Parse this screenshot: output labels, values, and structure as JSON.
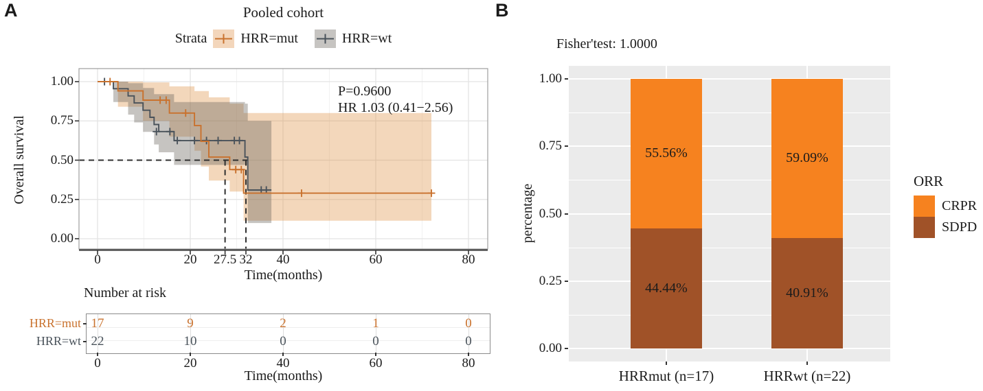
{
  "panels": {
    "a": "A",
    "b": "B"
  },
  "chart_data": [
    {
      "type": "line",
      "variant": "kaplan-meier",
      "title": "Pooled cohort",
      "legend_title": "Strata",
      "xlabel": "Time(months)",
      "ylabel": "Overall survival",
      "xlim": [
        0,
        80
      ],
      "ylim": [
        0,
        1
      ],
      "grid": true,
      "xticks": [
        0,
        20,
        27.5,
        32,
        40,
        60,
        80
      ],
      "xtick_labels": [
        "0",
        "20",
        "27.5",
        "32",
        "40",
        "60",
        "80"
      ],
      "yticks": [
        1,
        0.75,
        0.5,
        0.25,
        0
      ],
      "ytick_labels": [
        "1.00",
        "0.75",
        "0.50",
        "0.25",
        "0.00"
      ],
      "pvalue_text": "P=0.9600",
      "hr_text": "HR 1.03 (0.41−2.56)",
      "median_line": {
        "survival": 0.5,
        "times": [
          27.5,
          32
        ]
      },
      "series": [
        {
          "name": "HRR=mut",
          "color": "#C9722E",
          "band_color": "rgba(222,139,61,0.35)",
          "steps": [
            [
              0,
              1
            ],
            [
              4.4,
              0.941
            ],
            [
              9.8,
              0.882
            ],
            [
              15.5,
              0.8
            ],
            [
              20.9,
              0.72
            ],
            [
              22.3,
              0.62
            ],
            [
              24,
              0.52
            ],
            [
              28.5,
              0.44
            ],
            [
              31.5,
              0.29
            ]
          ],
          "end_time": 72,
          "censors": [
            [
              2.7,
              1
            ],
            [
              13.5,
              0.882
            ],
            [
              14.8,
              0.882
            ],
            [
              19,
              0.8
            ],
            [
              29.8,
              0.44
            ],
            [
              31,
              0.44
            ],
            [
              44,
              0.29
            ],
            [
              72,
              0.29
            ]
          ],
          "band_upper": [
            [
              0,
              1
            ],
            [
              9.8,
              0.995
            ],
            [
              15.5,
              0.97
            ],
            [
              20.9,
              0.94
            ],
            [
              24,
              0.9
            ],
            [
              28.5,
              0.86
            ],
            [
              31.5,
              0.8
            ]
          ],
          "band_lower": [
            [
              0,
              1
            ],
            [
              4.4,
              0.84
            ],
            [
              9.8,
              0.75
            ],
            [
              15.5,
              0.65
            ],
            [
              20.9,
              0.56
            ],
            [
              22.3,
              0.46
            ],
            [
              24,
              0.37
            ],
            [
              28.5,
              0.3
            ],
            [
              31.5,
              0.115
            ]
          ]
        },
        {
          "name": "HRR=wt",
          "color": "#49525A",
          "band_color": "rgba(105,100,92,0.38)",
          "steps": [
            [
              0,
              1
            ],
            [
              3.4,
              0.955
            ],
            [
              6.6,
              0.909
            ],
            [
              7.9,
              0.864
            ],
            [
              9.8,
              0.818
            ],
            [
              11.3,
              0.773
            ],
            [
              12.2,
              0.727
            ],
            [
              13.2,
              0.682
            ],
            [
              16.5,
              0.625
            ],
            [
              31.8,
              0.52
            ],
            [
              32.4,
              0.31
            ]
          ],
          "end_time": 37.5,
          "censors": [
            [
              1.5,
              1
            ],
            [
              12.7,
              0.682
            ],
            [
              15.6,
              0.682
            ],
            [
              17.2,
              0.625
            ],
            [
              20.9,
              0.625
            ],
            [
              23.5,
              0.625
            ],
            [
              26,
              0.625
            ],
            [
              29.5,
              0.625
            ],
            [
              30.6,
              0.625
            ],
            [
              35.3,
              0.31
            ],
            [
              36.4,
              0.31
            ]
          ],
          "band_upper": [
            [
              0,
              1
            ],
            [
              6.6,
              0.99
            ],
            [
              9.8,
              0.96
            ],
            [
              12.2,
              0.92
            ],
            [
              16.5,
              0.87
            ],
            [
              31.8,
              0.86
            ],
            [
              32.4,
              0.75
            ]
          ],
          "band_lower": [
            [
              0,
              1
            ],
            [
              3.4,
              0.87
            ],
            [
              6.6,
              0.79
            ],
            [
              7.9,
              0.74
            ],
            [
              9.8,
              0.68
            ],
            [
              12.2,
              0.6
            ],
            [
              13.2,
              0.55
            ],
            [
              16.5,
              0.47
            ],
            [
              32.4,
              0.1
            ]
          ]
        }
      ],
      "risk_table": {
        "title": "Number at risk",
        "xlabel": "Time(months)",
        "times": [
          0,
          20,
          40,
          60,
          80
        ],
        "time_labels": [
          "0",
          "20",
          "40",
          "60",
          "80"
        ],
        "rows": [
          {
            "name": "HRR=mut",
            "color": "#C9722E",
            "values": [
              "17",
              "9",
              "2",
              "1",
              "0"
            ]
          },
          {
            "name": "HRR=wt",
            "color": "#49525A",
            "values": [
              "22",
              "10",
              "0",
              "0",
              "0"
            ]
          }
        ]
      }
    },
    {
      "type": "bar",
      "stacked": true,
      "title": "Fisher'test: 1.0000",
      "ylabel": "percentage",
      "legend_title": "ORR",
      "legend_position": "right",
      "categories": [
        "HRRmut (n=17)",
        "HRRwt (n=22)"
      ],
      "ylim": [
        0,
        1
      ],
      "yticks": [
        0,
        0.25,
        0.5,
        0.75,
        1
      ],
      "ytick_labels": [
        "0.00",
        "0.25",
        "0.50",
        "0.75",
        "1.00"
      ],
      "background": "#EBEBEB",
      "series": [
        {
          "name": "CRPR",
          "color": "#F6821F",
          "values": [
            0.5556,
            0.5909
          ],
          "value_labels": [
            "55.56%",
            "59.09%"
          ]
        },
        {
          "name": "SDPD",
          "color": "#A05228",
          "values": [
            0.4444,
            0.4091
          ],
          "value_labels": [
            "44.44%",
            "40.91%"
          ]
        }
      ]
    }
  ]
}
